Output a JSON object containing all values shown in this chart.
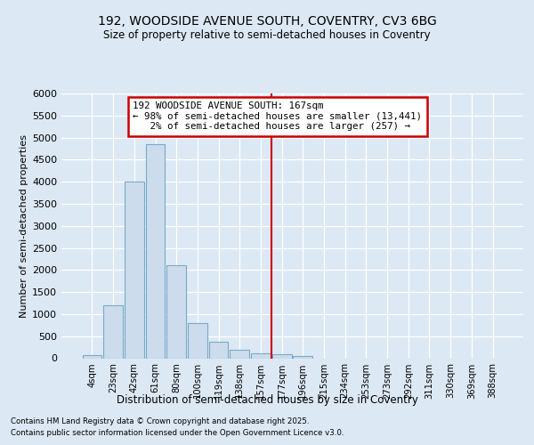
{
  "title1": "192, WOODSIDE AVENUE SOUTH, COVENTRY, CV3 6BG",
  "title2": "Size of property relative to semi-detached houses in Coventry",
  "xlabel": "Distribution of semi-detached houses by size in Coventry",
  "ylabel": "Number of semi-detached properties",
  "categories": [
    "4sqm",
    "23sqm",
    "42sqm",
    "61sqm",
    "80sqm",
    "100sqm",
    "119sqm",
    "138sqm",
    "157sqm",
    "177sqm",
    "196sqm",
    "215sqm",
    "234sqm",
    "253sqm",
    "273sqm",
    "292sqm",
    "311sqm",
    "330sqm",
    "369sqm",
    "388sqm"
  ],
  "values": [
    75,
    1200,
    4000,
    4850,
    2100,
    800,
    380,
    200,
    120,
    100,
    50,
    0,
    0,
    0,
    0,
    0,
    0,
    0,
    0,
    0
  ],
  "bar_color": "#ccdcec",
  "bar_edge_color": "#7aaac8",
  "vline_x": 9.0,
  "vline_color": "#cc0000",
  "annotation_text": "192 WOODSIDE AVENUE SOUTH: 167sqm\n← 98% of semi-detached houses are smaller (13,441)\n   2% of semi-detached houses are larger (257) →",
  "annotation_box_color": "#ffffff",
  "annotation_box_edge": "#cc0000",
  "ylim": [
    0,
    6000
  ],
  "yticks": [
    0,
    500,
    1000,
    1500,
    2000,
    2500,
    3000,
    3500,
    4000,
    4500,
    5000,
    5500,
    6000
  ],
  "footer1": "Contains HM Land Registry data © Crown copyright and database right 2025.",
  "footer2": "Contains public sector information licensed under the Open Government Licence v3.0.",
  "bg_color": "#dce8f4",
  "plot_bg_color": "#dce8f4",
  "grid_color": "#ffffff"
}
